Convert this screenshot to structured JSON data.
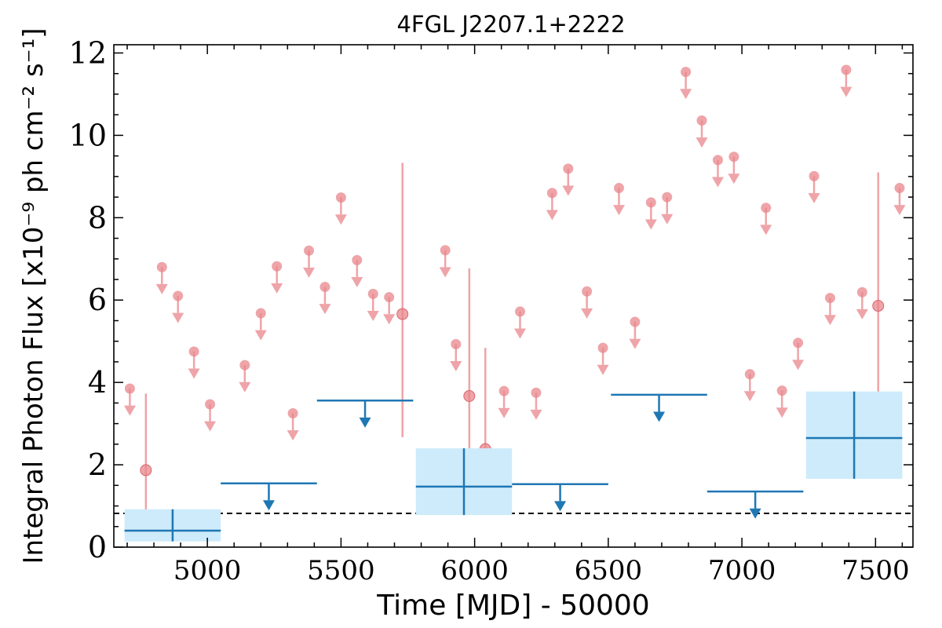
{
  "chart_data": {
    "type": "scatter",
    "title": "4FGL J2207.1+2222",
    "xlabel": "Time [MJD] - 50000",
    "ylabel": "Integral Photon Flux [x10⁻⁹ ph cm⁻² s⁻¹]",
    "xlim": [
      4650,
      7640
    ],
    "ylim": [
      0,
      12.2
    ],
    "xticks": [
      5000,
      5500,
      6000,
      6500,
      7000,
      7500
    ],
    "yticks": [
      0,
      2,
      4,
      6,
      8,
      10,
      12
    ],
    "grid": false,
    "reference_line": {
      "y": 0.82,
      "style": "dashed",
      "color": "#000000"
    },
    "colors": {
      "fine_bins": "#e8868b",
      "coarse_bins": "#1f77b4",
      "coarse_band": "#cdebfb"
    },
    "series": [
      {
        "kind": "upper_limits",
        "color": "#e8868b",
        "x": [
          4710,
          4830,
          4890,
          4950,
          5010,
          5140,
          5200,
          5260,
          5320,
          5380,
          5440,
          5500,
          5560,
          5620,
          5680,
          5890,
          5930,
          6110,
          6170,
          6230,
          6290,
          6350,
          6420,
          6480,
          6540,
          6600,
          6660,
          6720,
          6790,
          6850,
          6910,
          6970,
          7030,
          7090,
          7150,
          7210,
          7270,
          7330,
          7390,
          7450,
          7590
        ],
        "y": [
          3.85,
          6.8,
          6.1,
          4.75,
          3.47,
          4.42,
          5.68,
          6.82,
          3.25,
          7.2,
          6.32,
          8.49,
          6.97,
          6.15,
          6.07,
          7.21,
          4.93,
          3.79,
          5.72,
          3.75,
          8.6,
          9.19,
          6.21,
          4.84,
          8.72,
          5.47,
          8.37,
          8.5,
          11.54,
          10.36,
          9.4,
          9.48,
          4.2,
          8.24,
          3.8,
          4.96,
          9.01,
          6.05,
          11.59,
          6.19,
          8.72
        ]
      },
      {
        "kind": "detections",
        "color": "#e8868b",
        "x": [
          4770,
          5730,
          5980,
          6040,
          7510
        ],
        "y": [
          1.87,
          5.66,
          3.67,
          2.38,
          5.86
        ],
        "y_low": [
          0.68,
          2.67,
          1.5,
          0.82,
          3.32
        ],
        "y_high": [
          3.73,
          9.33,
          6.77,
          4.84,
          9.1
        ]
      },
      {
        "kind": "binned_detections",
        "color": "#1f77b4",
        "x": [
          4870,
          5960,
          7420
        ],
        "xerr": [
          180,
          180,
          180
        ],
        "y": [
          0.4,
          1.47,
          2.65
        ],
        "y_low": [
          0.14,
          0.78,
          1.66
        ],
        "y_high": [
          0.92,
          2.4,
          3.78
        ]
      },
      {
        "kind": "binned_upper_limits",
        "color": "#1f77b4",
        "x": [
          5230,
          5590,
          6320,
          6690,
          7050
        ],
        "xerr": [
          180,
          180,
          180,
          180,
          180
        ],
        "y": [
          1.55,
          3.56,
          1.53,
          3.7,
          1.35
        ]
      }
    ]
  }
}
